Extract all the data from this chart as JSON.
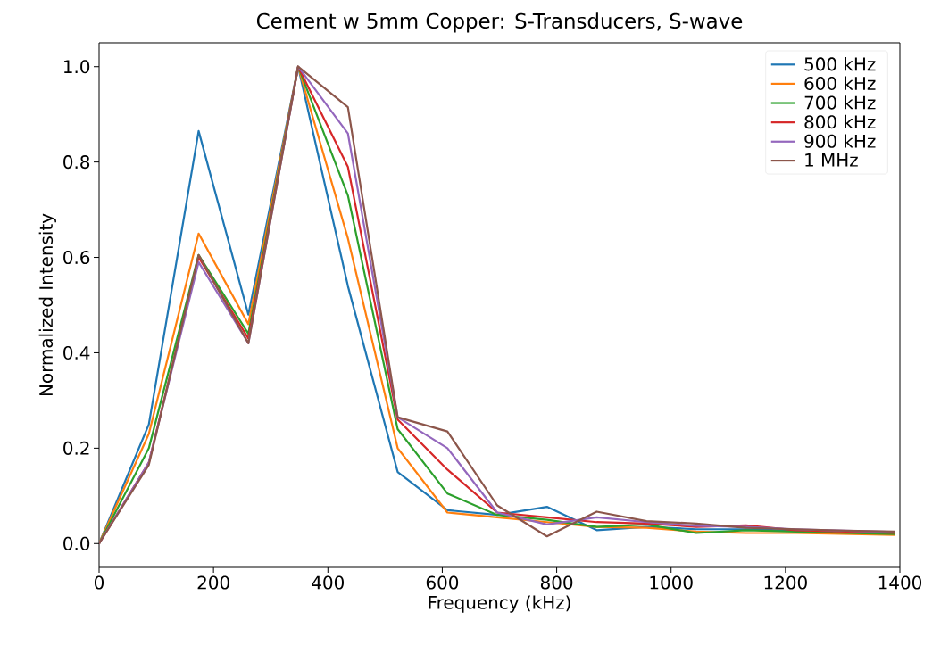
{
  "chart_data": {
    "type": "line",
    "title": "Cement w 5mm Copper: S-Transducers, S-wave",
    "xlabel": "Frequency (kHz)",
    "ylabel": "Normalized Intensity",
    "x": [
      0,
      87,
      174,
      261,
      348,
      435,
      522,
      609,
      696,
      783,
      870,
      957,
      1044,
      1131,
      1218,
      1305,
      1392
    ],
    "series": [
      {
        "name": "500 kHz",
        "color": "#1f77b4",
        "values": [
          0,
          0.25,
          0.865,
          0.48,
          1.0,
          0.54,
          0.15,
          0.07,
          0.06,
          0.077,
          0.028,
          0.035,
          0.03,
          0.03,
          0.027,
          null,
          null
        ]
      },
      {
        "name": "600 kHz",
        "color": "#ff7f0e",
        "values": [
          0,
          0.23,
          0.65,
          0.46,
          1.0,
          0.64,
          0.2,
          0.065,
          0.055,
          0.045,
          0.035,
          0.033,
          0.025,
          0.022,
          0.022,
          0.02,
          0.018
        ]
      },
      {
        "name": "700 kHz",
        "color": "#2ca02c",
        "values": [
          0,
          0.2,
          0.605,
          0.44,
          1.0,
          0.73,
          0.24,
          0.105,
          0.06,
          0.05,
          0.035,
          0.04,
          0.022,
          0.028,
          0.025,
          0.022,
          0.02
        ]
      },
      {
        "name": "800 kHz",
        "color": "#d62728",
        "values": [
          0,
          0.17,
          0.6,
          0.43,
          1.0,
          0.79,
          0.26,
          0.155,
          0.065,
          0.055,
          0.045,
          0.042,
          0.035,
          0.038,
          0.028,
          0.025,
          0.022
        ]
      },
      {
        "name": "900 kHz",
        "color": "#9467bd",
        "values": [
          0,
          0.17,
          0.59,
          0.42,
          1.0,
          0.86,
          0.265,
          0.2,
          0.065,
          0.04,
          0.055,
          0.045,
          0.037,
          0.035,
          0.03,
          0.027,
          0.024
        ]
      },
      {
        "name": "1 MHz",
        "color": "#8c564b",
        "values": [
          0,
          0.165,
          0.605,
          0.42,
          1.0,
          0.915,
          0.265,
          0.235,
          0.08,
          0.015,
          0.067,
          0.047,
          0.042,
          0.033,
          0.03,
          0.027,
          0.025
        ]
      }
    ],
    "xlim": [
      0,
      1400
    ],
    "ylim": [
      -0.05,
      1.05
    ],
    "xticks": [
      0,
      200,
      400,
      600,
      800,
      1000,
      1200,
      1400
    ],
    "yticks": [
      {
        "value": 0,
        "label": "0.0"
      },
      {
        "value": 0.2,
        "label": "0.2"
      },
      {
        "value": 0.4,
        "label": "0.4"
      },
      {
        "value": 0.6,
        "label": "0.6"
      },
      {
        "value": 0.8,
        "label": "0.8"
      },
      {
        "value": 1.0,
        "label": "1.0"
      }
    ],
    "legend": "top right",
    "grid": false,
    "marker": "none",
    "line_style": "solid"
  }
}
